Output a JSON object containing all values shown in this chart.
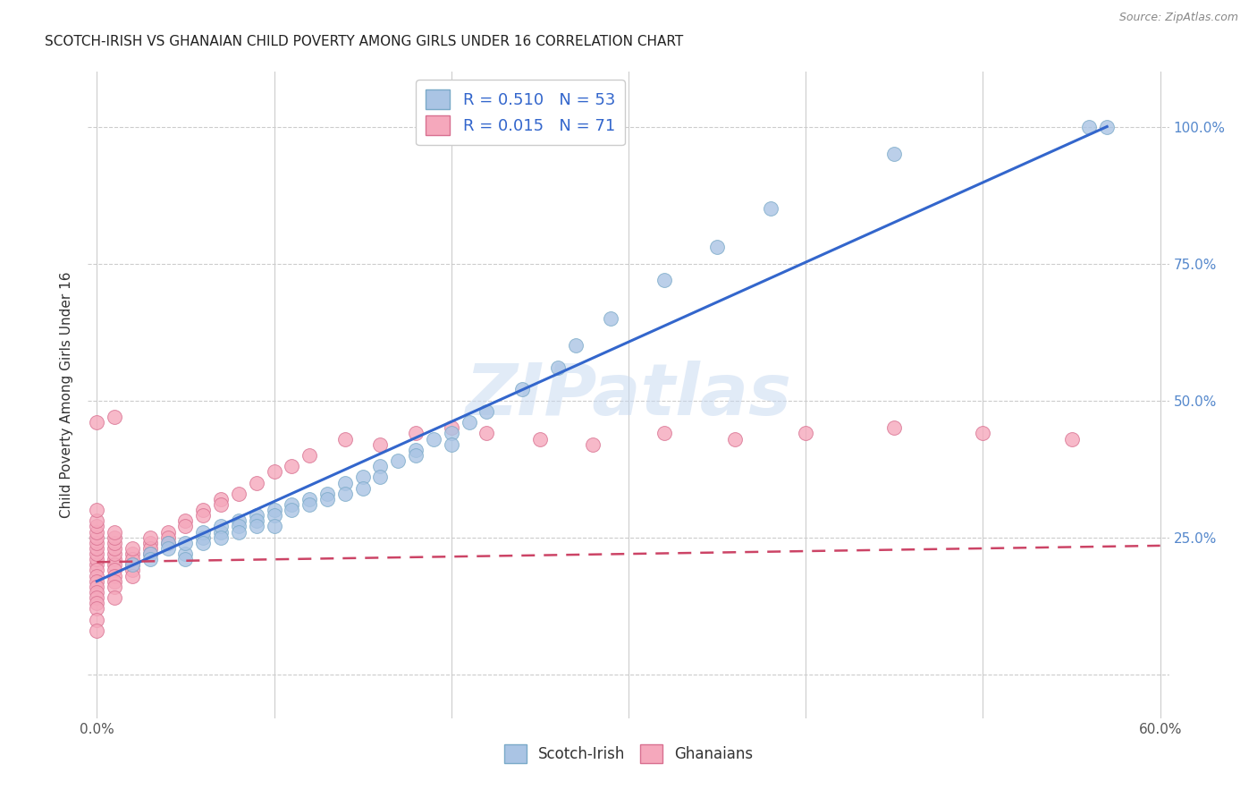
{
  "title": "SCOTCH-IRISH VS GHANAIAN CHILD POVERTY AMONG GIRLS UNDER 16 CORRELATION CHART",
  "source": "Source: ZipAtlas.com",
  "ylabel": "Child Poverty Among Girls Under 16",
  "xlim": [
    -0.005,
    0.605
  ],
  "ylim": [
    -0.08,
    1.1
  ],
  "scotch_irish_color": "#aac4e4",
  "scotch_irish_edge": "#7aaac8",
  "ghanaian_color": "#f5a8bc",
  "ghanaian_edge": "#d87090",
  "trend_blue": "#3366cc",
  "trend_pink": "#cc4466",
  "R_scotch": 0.51,
  "N_scotch": 53,
  "R_ghana": 0.015,
  "N_ghana": 71,
  "watermark": "ZIPatlas",
  "background_color": "#ffffff",
  "grid_color": "#cccccc",
  "scotch_irish_x": [
    0.02,
    0.03,
    0.03,
    0.04,
    0.04,
    0.05,
    0.05,
    0.05,
    0.06,
    0.06,
    0.06,
    0.07,
    0.07,
    0.07,
    0.08,
    0.08,
    0.08,
    0.09,
    0.09,
    0.09,
    0.1,
    0.1,
    0.1,
    0.11,
    0.11,
    0.12,
    0.12,
    0.13,
    0.13,
    0.14,
    0.14,
    0.15,
    0.15,
    0.16,
    0.16,
    0.17,
    0.18,
    0.18,
    0.19,
    0.2,
    0.2,
    0.21,
    0.22,
    0.24,
    0.26,
    0.27,
    0.29,
    0.32,
    0.35,
    0.38,
    0.45,
    0.56,
    0.57
  ],
  "scotch_irish_y": [
    0.2,
    0.22,
    0.21,
    0.24,
    0.23,
    0.22,
    0.24,
    0.21,
    0.25,
    0.26,
    0.24,
    0.26,
    0.27,
    0.25,
    0.28,
    0.27,
    0.26,
    0.29,
    0.28,
    0.27,
    0.3,
    0.29,
    0.27,
    0.31,
    0.3,
    0.32,
    0.31,
    0.33,
    0.32,
    0.35,
    0.33,
    0.36,
    0.34,
    0.38,
    0.36,
    0.39,
    0.41,
    0.4,
    0.43,
    0.44,
    0.42,
    0.46,
    0.48,
    0.52,
    0.56,
    0.6,
    0.65,
    0.72,
    0.78,
    0.85,
    0.95,
    1.0,
    1.0
  ],
  "ghana_x": [
    0.0,
    0.0,
    0.0,
    0.0,
    0.0,
    0.0,
    0.0,
    0.0,
    0.0,
    0.0,
    0.0,
    0.0,
    0.0,
    0.0,
    0.0,
    0.0,
    0.0,
    0.0,
    0.0,
    0.0,
    0.01,
    0.01,
    0.01,
    0.01,
    0.01,
    0.01,
    0.01,
    0.01,
    0.01,
    0.01,
    0.01,
    0.01,
    0.02,
    0.02,
    0.02,
    0.02,
    0.02,
    0.02,
    0.03,
    0.03,
    0.03,
    0.03,
    0.04,
    0.04,
    0.04,
    0.05,
    0.05,
    0.06,
    0.06,
    0.07,
    0.07,
    0.08,
    0.09,
    0.1,
    0.11,
    0.12,
    0.14,
    0.16,
    0.18,
    0.2,
    0.22,
    0.25,
    0.28,
    0.32,
    0.36,
    0.4,
    0.45,
    0.5,
    0.55,
    0.0,
    0.01
  ],
  "ghana_y": [
    0.2,
    0.21,
    0.19,
    0.22,
    0.18,
    0.23,
    0.17,
    0.24,
    0.16,
    0.25,
    0.15,
    0.26,
    0.14,
    0.27,
    0.13,
    0.28,
    0.12,
    0.3,
    0.1,
    0.08,
    0.21,
    0.2,
    0.19,
    0.22,
    0.18,
    0.23,
    0.17,
    0.24,
    0.16,
    0.25,
    0.14,
    0.26,
    0.22,
    0.21,
    0.2,
    0.23,
    0.19,
    0.18,
    0.24,
    0.23,
    0.22,
    0.25,
    0.26,
    0.25,
    0.24,
    0.28,
    0.27,
    0.3,
    0.29,
    0.32,
    0.31,
    0.33,
    0.35,
    0.37,
    0.38,
    0.4,
    0.43,
    0.42,
    0.44,
    0.45,
    0.44,
    0.43,
    0.42,
    0.44,
    0.43,
    0.44,
    0.45,
    0.44,
    0.43,
    0.46,
    0.47
  ],
  "trend_si_x0": 0.0,
  "trend_si_y0": 0.17,
  "trend_si_x1": 0.57,
  "trend_si_y1": 1.0,
  "trend_gh_x0": 0.0,
  "trend_gh_y0": 0.205,
  "trend_gh_x1": 0.6,
  "trend_gh_y1": 0.235
}
